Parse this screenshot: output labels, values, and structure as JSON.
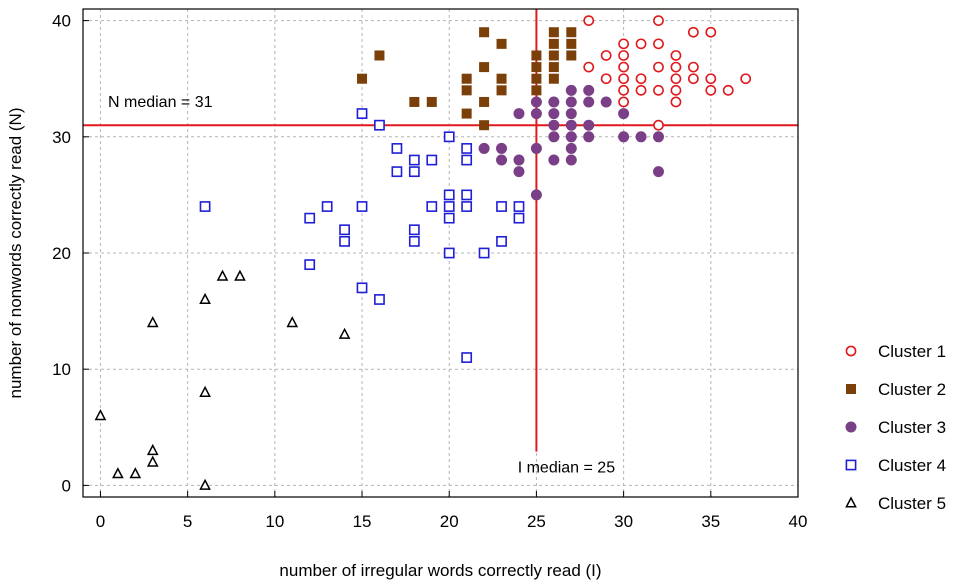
{
  "chart_data": {
    "type": "scatter",
    "title": "",
    "xlabel": "number of irregular words correctly read (I)",
    "ylabel": "number of nonwords correctly read (N)",
    "xlim": [
      -1,
      40
    ],
    "ylim": [
      -1,
      41
    ],
    "xticks": [
      0,
      5,
      10,
      15,
      20,
      25,
      30,
      35,
      40
    ],
    "yticks": [
      0,
      10,
      20,
      30,
      40
    ],
    "grid": true,
    "legend_position": "right",
    "reference_lines": [
      {
        "axis": "y",
        "value": 31,
        "label": "N median = 31",
        "color": "#e0191c"
      },
      {
        "axis": "x",
        "value": 25,
        "label": "I median = 25",
        "color": "#e0191c"
      }
    ],
    "series": [
      {
        "name": "Cluster 1",
        "marker": "circle-open",
        "color": "#e0191c",
        "points": [
          [
            28,
            40
          ],
          [
            32,
            40
          ],
          [
            29,
            37
          ],
          [
            30,
            38
          ],
          [
            30,
            37
          ],
          [
            31,
            38
          ],
          [
            32,
            38
          ],
          [
            34,
            39
          ],
          [
            35,
            39
          ],
          [
            28,
            36
          ],
          [
            30,
            36
          ],
          [
            32,
            36
          ],
          [
            33,
            37
          ],
          [
            33,
            36
          ],
          [
            34,
            36
          ],
          [
            29,
            35
          ],
          [
            30,
            35
          ],
          [
            31,
            35
          ],
          [
            33,
            35
          ],
          [
            34,
            35
          ],
          [
            35,
            35
          ],
          [
            37,
            35
          ],
          [
            30,
            34
          ],
          [
            31,
            34
          ],
          [
            32,
            34
          ],
          [
            33,
            34
          ],
          [
            35,
            34
          ],
          [
            36,
            34
          ],
          [
            30,
            33
          ],
          [
            33,
            33
          ],
          [
            32,
            31
          ]
        ]
      },
      {
        "name": "Cluster 2",
        "marker": "square-filled",
        "color": "#7b3f0a",
        "points": [
          [
            16,
            37
          ],
          [
            15,
            35
          ],
          [
            18,
            33
          ],
          [
            19,
            33
          ],
          [
            21,
            35
          ],
          [
            21,
            34
          ],
          [
            21,
            32
          ],
          [
            22,
            39
          ],
          [
            22,
            36
          ],
          [
            22,
            33
          ],
          [
            22,
            31
          ],
          [
            23,
            38
          ],
          [
            23,
            35
          ],
          [
            23,
            34
          ],
          [
            25,
            37
          ],
          [
            25,
            36
          ],
          [
            25,
            35
          ],
          [
            25,
            34
          ],
          [
            26,
            39
          ],
          [
            26,
            38
          ],
          [
            26,
            37
          ],
          [
            26,
            36
          ],
          [
            26,
            35
          ],
          [
            27,
            39
          ],
          [
            27,
            38
          ],
          [
            27,
            37
          ]
        ]
      },
      {
        "name": "Cluster 3",
        "marker": "circle-filled",
        "color": "#7a3f86",
        "points": [
          [
            24,
            32
          ],
          [
            25,
            33
          ],
          [
            25,
            32
          ],
          [
            26,
            33
          ],
          [
            26,
            32
          ],
          [
            26,
            31
          ],
          [
            27,
            34
          ],
          [
            27,
            33
          ],
          [
            27,
            32
          ],
          [
            27,
            31
          ],
          [
            27,
            30
          ],
          [
            28,
            34
          ],
          [
            28,
            33
          ],
          [
            28,
            31
          ],
          [
            28,
            30
          ],
          [
            29,
            33
          ],
          [
            30,
            32
          ],
          [
            30,
            30
          ],
          [
            31,
            30
          ],
          [
            32,
            30
          ],
          [
            22,
            29
          ],
          [
            23,
            29
          ],
          [
            23,
            28
          ],
          [
            24,
            28
          ],
          [
            24,
            27
          ],
          [
            25,
            29
          ],
          [
            26,
            30
          ],
          [
            26,
            28
          ],
          [
            27,
            29
          ],
          [
            27,
            28
          ],
          [
            32,
            27
          ],
          [
            25,
            25
          ]
        ]
      },
      {
        "name": "Cluster 4",
        "marker": "square-open",
        "color": "#1f1fd6",
        "points": [
          [
            15,
            32
          ],
          [
            16,
            31
          ],
          [
            17,
            29
          ],
          [
            17,
            27
          ],
          [
            18,
            28
          ],
          [
            18,
            27
          ],
          [
            19,
            28
          ],
          [
            20,
            30
          ],
          [
            21,
            29
          ],
          [
            21,
            28
          ],
          [
            6,
            24
          ],
          [
            12,
            23
          ],
          [
            13,
            24
          ],
          [
            14,
            22
          ],
          [
            14,
            21
          ],
          [
            15,
            24
          ],
          [
            18,
            22
          ],
          [
            18,
            21
          ],
          [
            19,
            24
          ],
          [
            20,
            25
          ],
          [
            20,
            24
          ],
          [
            20,
            23
          ],
          [
            20,
            20
          ],
          [
            21,
            25
          ],
          [
            21,
            24
          ],
          [
            22,
            20
          ],
          [
            23,
            24
          ],
          [
            23,
            21
          ],
          [
            24,
            24
          ],
          [
            24,
            23
          ],
          [
            12,
            19
          ],
          [
            15,
            17
          ],
          [
            16,
            16
          ],
          [
            21,
            11
          ]
        ]
      },
      {
        "name": "Cluster 5",
        "marker": "triangle-open",
        "color": "#000000",
        "points": [
          [
            7,
            18
          ],
          [
            8,
            18
          ],
          [
            6,
            16
          ],
          [
            3,
            14
          ],
          [
            11,
            14
          ],
          [
            14,
            13
          ],
          [
            6,
            8
          ],
          [
            0,
            6
          ],
          [
            3,
            3
          ],
          [
            3,
            2
          ],
          [
            1,
            1
          ],
          [
            2,
            1
          ],
          [
            6,
            0
          ]
        ]
      }
    ]
  }
}
